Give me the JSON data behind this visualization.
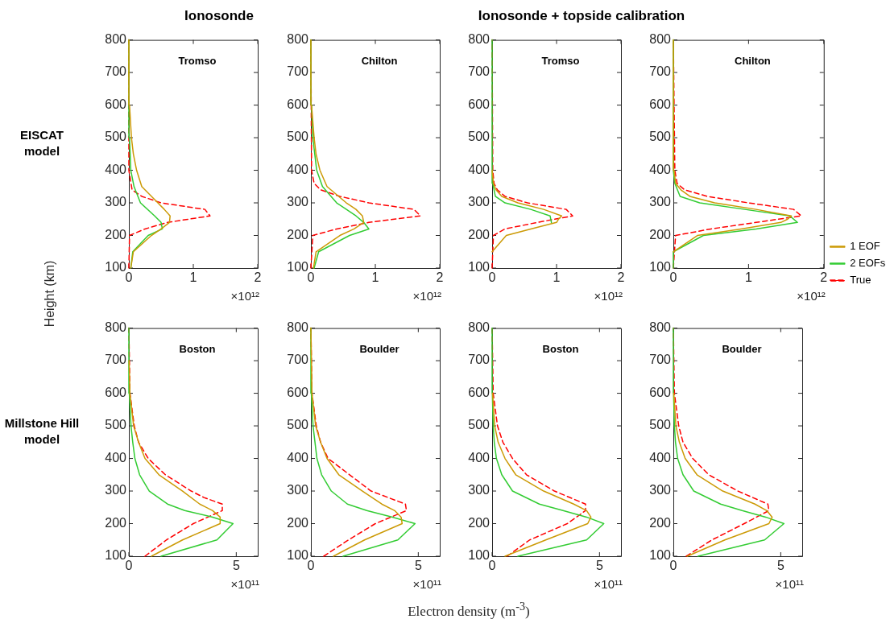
{
  "chart_data": [
    {
      "type": "line",
      "title": "Tromso",
      "xlim": [
        0,
        2
      ],
      "xticks": [
        0,
        1,
        2
      ],
      "ylim": [
        100,
        800
      ],
      "yticks": [
        100,
        200,
        300,
        400,
        500,
        600,
        700,
        800
      ],
      "marker": "none",
      "grid": false,
      "annotations": [
        "×10¹²"
      ],
      "series": [
        {
          "color": "#cc9a06",
          "line_style": "solid",
          "x": [
            0.03,
            0.07,
            0.35,
            0.5,
            0.63,
            0.64,
            0.55,
            0.45,
            0.2,
            0.12,
            0.07,
            0.04,
            0.01,
            0
          ],
          "values": [
            100,
            150,
            200,
            220,
            240,
            260,
            280,
            300,
            350,
            400,
            450,
            500,
            600,
            800
          ]
        },
        {
          "color": "#33cc33",
          "line_style": "solid",
          "x": [
            0.03,
            0.06,
            0.3,
            0.52,
            0.5,
            0.4,
            0.18,
            0.08,
            0.03,
            0.01,
            0
          ],
          "values": [
            100,
            150,
            200,
            220,
            240,
            260,
            300,
            350,
            400,
            500,
            800
          ]
        },
        {
          "color": "#ff0000",
          "line_style": "dashed",
          "x": [
            0,
            0.01,
            0.25,
            0.6,
            1.26,
            1.18,
            0.5,
            0.2,
            0.05,
            0,
            0
          ],
          "values": [
            100,
            200,
            220,
            240,
            260,
            280,
            300,
            320,
            340,
            400,
            800
          ]
        }
      ]
    },
    {
      "type": "line",
      "title": "Chilton",
      "xlim": [
        0,
        2
      ],
      "xticks": [
        0,
        1,
        2
      ],
      "ylim": [
        100,
        800
      ],
      "yticks": [
        100,
        200,
        300,
        400,
        500,
        600,
        700,
        800
      ],
      "marker": "none",
      "grid": false,
      "annotations": [
        "×10¹²"
      ],
      "series": [
        {
          "color": "#cc9a06",
          "line_style": "solid",
          "x": [
            0.04,
            0.08,
            0.45,
            0.67,
            0.82,
            0.8,
            0.7,
            0.55,
            0.25,
            0.14,
            0.08,
            0.05,
            0.01,
            0
          ],
          "values": [
            100,
            150,
            200,
            220,
            240,
            260,
            280,
            300,
            350,
            400,
            450,
            500,
            600,
            800
          ]
        },
        {
          "color": "#33cc33",
          "line_style": "solid",
          "x": [
            0.05,
            0.12,
            0.6,
            0.9,
            0.82,
            0.7,
            0.4,
            0.18,
            0.09,
            0.03,
            0.01,
            0
          ],
          "values": [
            100,
            150,
            200,
            220,
            240,
            260,
            300,
            350,
            400,
            500,
            600,
            800
          ]
        },
        {
          "color": "#ff0000",
          "line_style": "dashed",
          "x": [
            0,
            0.03,
            0.4,
            0.9,
            1.7,
            1.6,
            0.9,
            0.45,
            0.15,
            0.05,
            0.01,
            0
          ],
          "values": [
            100,
            200,
            220,
            240,
            260,
            280,
            300,
            320,
            340,
            360,
            400,
            800
          ]
        }
      ]
    },
    {
      "type": "line",
      "title": "Tromso",
      "xlim": [
        0,
        2
      ],
      "xticks": [
        0,
        1,
        2
      ],
      "ylim": [
        100,
        800
      ],
      "yticks": [
        100,
        200,
        300,
        400,
        500,
        600,
        700,
        800
      ],
      "marker": "none",
      "grid": false,
      "annotations": [
        "×10¹²"
      ],
      "series": [
        {
          "color": "#cc9a06",
          "line_style": "solid",
          "x": [
            0,
            0.22,
            0.6,
            1,
            1.03,
            1.08,
            0.8,
            0.4,
            0.15,
            0.06,
            0.02,
            0
          ],
          "values": [
            150,
            200,
            220,
            240,
            250,
            260,
            280,
            300,
            320,
            340,
            360,
            400
          ]
        },
        {
          "color": "#33cc33",
          "line_style": "solid",
          "x": [
            0.92,
            0.9,
            0.6,
            0.2,
            0.05,
            0.01,
            0
          ],
          "values": [
            240,
            260,
            280,
            300,
            320,
            360,
            800
          ]
        },
        {
          "color": "#ff0000",
          "line_style": "dashed",
          "x": [
            0,
            0.02,
            0.2,
            0.7,
            1.25,
            1.15,
            0.55,
            0.2,
            0.08,
            0.03,
            0.01,
            0
          ],
          "values": [
            100,
            200,
            220,
            240,
            260,
            280,
            300,
            320,
            340,
            360,
            400,
            800
          ]
        }
      ]
    },
    {
      "type": "line",
      "title": "Chilton",
      "xlim": [
        0,
        2
      ],
      "xticks": [
        0,
        1,
        2
      ],
      "ylim": [
        100,
        800
      ],
      "yticks": [
        100,
        200,
        300,
        400,
        500,
        600,
        700,
        800
      ],
      "marker": "none",
      "grid": false,
      "legend": "right",
      "annotations": [
        "×10¹²"
      ],
      "series": [
        {
          "name": "1 EOF",
          "color": "#cc9a06",
          "line_style": "solid",
          "x": [
            0,
            0.32,
            0.9,
            1.43,
            1.52,
            1.57,
            1.1,
            0.55,
            0.22,
            0.1,
            0.03,
            0.01,
            0
          ],
          "values": [
            150,
            200,
            220,
            240,
            250,
            260,
            280,
            300,
            320,
            340,
            360,
            400,
            800
          ]
        },
        {
          "name": "2 EOFs",
          "color": "#33cc33",
          "line_style": "solid",
          "x": [
            0,
            0,
            0.4,
            1.1,
            1.65,
            1.55,
            0.95,
            0.35,
            0.09,
            0.02,
            0,
            0
          ],
          "values": [
            100,
            150,
            200,
            220,
            240,
            260,
            280,
            300,
            320,
            360,
            400,
            800
          ]
        },
        {
          "name": "True",
          "color": "#ff0000",
          "line_style": "dashed",
          "x": [
            0,
            0.03,
            0.5,
            1.1,
            1.7,
            1.6,
            1,
            0.45,
            0.15,
            0.05,
            0.02,
            0
          ],
          "values": [
            100,
            200,
            220,
            240,
            260,
            280,
            300,
            320,
            340,
            360,
            400,
            800
          ]
        }
      ]
    },
    {
      "type": "line",
      "title": "Boston",
      "xlim": [
        0,
        6
      ],
      "xticks": [
        0,
        5
      ],
      "ylim": [
        100,
        800
      ],
      "yticks": [
        100,
        200,
        300,
        400,
        500,
        600,
        700,
        800
      ],
      "marker": "none",
      "grid": false,
      "annotations": [
        "×10¹¹"
      ],
      "series": [
        {
          "color": "#cc9a06",
          "line_style": "solid",
          "x": [
            1.05,
            2.5,
            4.25,
            4.25,
            3.9,
            3.3,
            2.5,
            1.4,
            0.75,
            0.45,
            0.22,
            0.05,
            0.01
          ],
          "values": [
            100,
            150,
            200,
            220,
            240,
            260,
            300,
            350,
            400,
            450,
            500,
            600,
            700
          ]
        },
        {
          "color": "#33cc33",
          "line_style": "solid",
          "x": [
            1.5,
            4.1,
            4.85,
            3.9,
            2.6,
            1.8,
            0.95,
            0.5,
            0.28,
            0.18,
            0.1,
            0.02,
            0
          ],
          "values": [
            100,
            150,
            200,
            220,
            240,
            260,
            300,
            350,
            400,
            450,
            500,
            600,
            800
          ]
        },
        {
          "color": "#ff0000",
          "line_style": "dashed",
          "x": [
            0.75,
            1.75,
            3,
            4.35,
            4.35,
            3.5,
            2.9,
            1.7,
            0.9,
            0.45,
            0.25,
            0.05,
            0
          ],
          "values": [
            100,
            150,
            200,
            240,
            260,
            280,
            300,
            350,
            400,
            450,
            500,
            600,
            800
          ]
        }
      ]
    },
    {
      "type": "line",
      "title": "Boulder",
      "xlim": [
        0,
        6
      ],
      "xticks": [
        0,
        5
      ],
      "ylim": [
        100,
        800
      ],
      "yticks": [
        100,
        200,
        300,
        400,
        500,
        600,
        700,
        800
      ],
      "marker": "none",
      "grid": false,
      "annotations": [
        "×10¹¹"
      ],
      "series": [
        {
          "color": "#cc9a06",
          "line_style": "solid",
          "x": [
            1.05,
            2.5,
            4.25,
            4.2,
            3.9,
            3.3,
            2.4,
            1.3,
            0.75,
            0.45,
            0.22,
            0.05,
            0
          ],
          "values": [
            100,
            150,
            200,
            220,
            240,
            260,
            300,
            350,
            400,
            450,
            500,
            600,
            800
          ]
        },
        {
          "color": "#33cc33",
          "line_style": "solid",
          "x": [
            1.5,
            4.05,
            4.85,
            3.8,
            2.6,
            1.7,
            0.95,
            0.5,
            0.28,
            0.1,
            0.02,
            0
          ],
          "values": [
            100,
            150,
            200,
            220,
            240,
            260,
            300,
            350,
            400,
            500,
            600,
            800
          ]
        },
        {
          "color": "#ff0000",
          "line_style": "dashed",
          "x": [
            0.6,
            1.75,
            3,
            4.45,
            4.4,
            3.6,
            2.8,
            1.8,
            0.8,
            0.45,
            0.25,
            0.05,
            0
          ],
          "values": [
            100,
            150,
            200,
            240,
            260,
            280,
            300,
            350,
            400,
            450,
            500,
            600,
            800
          ]
        }
      ]
    },
    {
      "type": "line",
      "title": "Boston",
      "xlim": [
        0,
        6
      ],
      "xticks": [
        0,
        5
      ],
      "ylim": [
        100,
        800
      ],
      "yticks": [
        100,
        200,
        300,
        400,
        500,
        600,
        700,
        800
      ],
      "marker": "none",
      "grid": false,
      "annotations": [
        "×10¹¹"
      ],
      "series": [
        {
          "color": "#cc9a06",
          "line_style": "solid",
          "x": [
            0.6,
            2.5,
            4.45,
            4.6,
            4.4,
            3.8,
            2.4,
            1.1,
            0.6,
            0.28,
            0.12,
            0.02
          ],
          "values": [
            100,
            150,
            200,
            220,
            240,
            260,
            300,
            350,
            400,
            450,
            500,
            600
          ]
        },
        {
          "color": "#33cc33",
          "line_style": "solid",
          "x": [
            1.2,
            4.4,
            5.2,
            4.4,
            3.3,
            2.2,
            0.95,
            0.45,
            0.2,
            0.1,
            0.05,
            0.01,
            0
          ],
          "values": [
            100,
            150,
            200,
            220,
            240,
            260,
            300,
            350,
            400,
            450,
            500,
            600,
            800
          ]
        },
        {
          "color": "#ff0000",
          "line_style": "dashed",
          "x": [
            0.7,
            1.75,
            3.5,
            4.35,
            4.35,
            2.9,
            1.6,
            0.95,
            0.5,
            0.25,
            0.05,
            0
          ],
          "values": [
            100,
            150,
            200,
            240,
            260,
            300,
            350,
            400,
            450,
            500,
            600,
            800
          ]
        }
      ]
    },
    {
      "type": "line",
      "title": "Boulder",
      "xlim": [
        0,
        6
      ],
      "xticks": [
        0,
        5
      ],
      "ylim": [
        100,
        800
      ],
      "yticks": [
        100,
        200,
        300,
        400,
        500,
        600,
        700,
        800
      ],
      "marker": "none",
      "grid": false,
      "annotations": [
        "×10¹¹"
      ],
      "series": [
        {
          "color": "#cc9a06",
          "line_style": "solid",
          "x": [
            0.65,
            2.4,
            4.45,
            4.6,
            4.35,
            3.8,
            2.3,
            1.1,
            0.55,
            0.28,
            0.12,
            0.02
          ],
          "values": [
            100,
            150,
            200,
            220,
            240,
            260,
            300,
            350,
            400,
            450,
            500,
            600
          ]
        },
        {
          "color": "#33cc33",
          "line_style": "solid",
          "x": [
            1.15,
            4.25,
            5.15,
            4.3,
            3.2,
            2.2,
            0.95,
            0.45,
            0.2,
            0.1,
            0.05,
            0.01,
            0
          ],
          "values": [
            100,
            150,
            200,
            220,
            240,
            260,
            300,
            350,
            400,
            450,
            500,
            600,
            800
          ]
        },
        {
          "color": "#ff0000",
          "line_style": "dashed",
          "x": [
            0.6,
            1.8,
            3.3,
            4.45,
            4.4,
            3,
            1.65,
            0.9,
            0.45,
            0.25,
            0.05,
            0
          ],
          "values": [
            100,
            150,
            200,
            240,
            260,
            300,
            350,
            400,
            450,
            500,
            600,
            800
          ]
        }
      ]
    },
    {
      "type": "other",
      "annotations": [
        "Ionosonde",
        "Ionosonde + topside calibration",
        "EISCAT model",
        "Millstone Hill model",
        "Height (km)",
        "Electron density (m$^{-3}$)"
      ]
    }
  ]
}
